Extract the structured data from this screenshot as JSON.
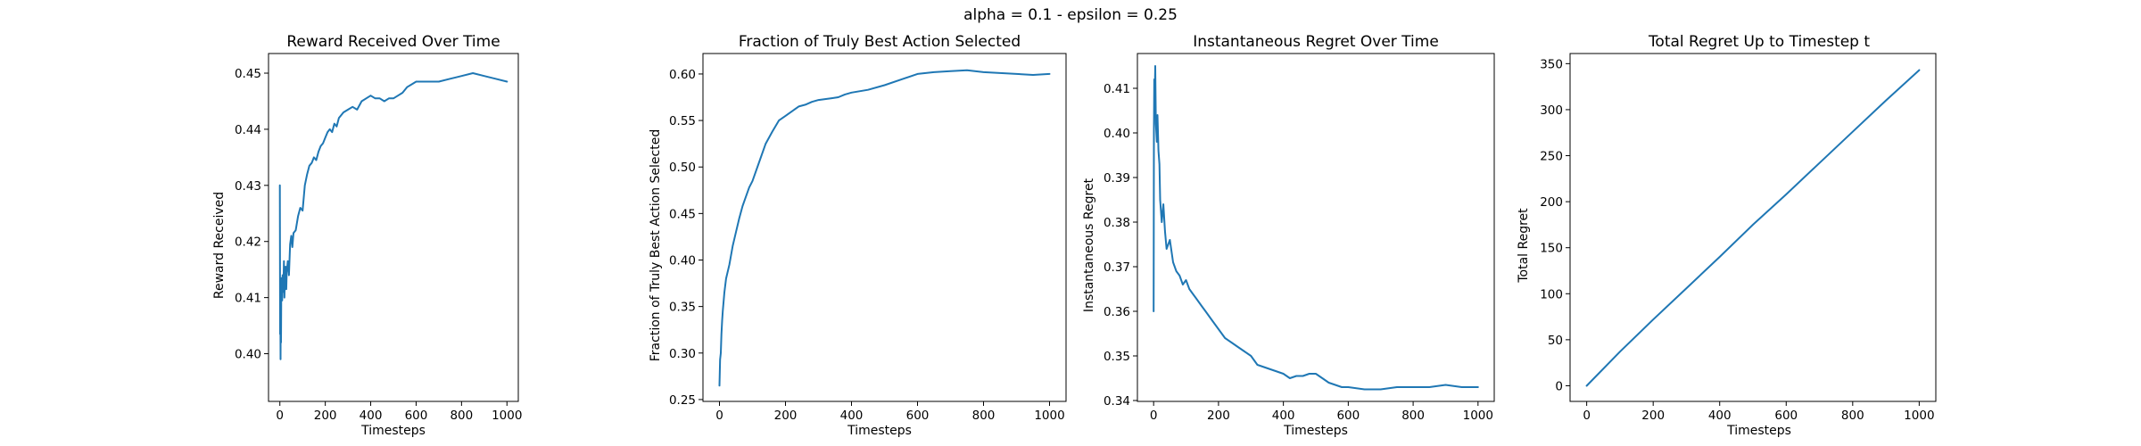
{
  "suptitle": "alpha = 0.1 - epsilon = 0.25",
  "colors": {
    "series": "#1f77b4",
    "axes": "#000000"
  },
  "chart_data": [
    {
      "type": "line",
      "title": "Reward Received Over Time",
      "xlabel": "Timesteps",
      "ylabel": "Reward Received",
      "xlim": [
        -50,
        1050
      ],
      "ylim": [
        0.3915,
        0.4535
      ],
      "xticks": [
        0,
        200,
        400,
        600,
        800,
        1000
      ],
      "xtick_labels": [
        "0",
        "200",
        "400",
        "600",
        "800",
        "1000"
      ],
      "yticks": [
        0.4,
        0.41,
        0.42,
        0.43,
        0.44,
        0.45
      ],
      "ytick_labels": [
        "0.40",
        "0.41",
        "0.42",
        "0.43",
        "0.44",
        "0.45"
      ],
      "grid": false,
      "series": [
        {
          "x": [
            0,
            1,
            2,
            3,
            4,
            5,
            6,
            8,
            10,
            12,
            15,
            18,
            20,
            22,
            25,
            28,
            30,
            35,
            40,
            45,
            50,
            55,
            60,
            70,
            80,
            90,
            100,
            110,
            120,
            130,
            140,
            150,
            160,
            170,
            180,
            190,
            200,
            210,
            220,
            230,
            240,
            250,
            260,
            280,
            300,
            320,
            340,
            360,
            380,
            400,
            420,
            440,
            460,
            480,
            500,
            520,
            540,
            560,
            580,
            600,
            650,
            700,
            750,
            800,
            850,
            900,
            950,
            1000
          ],
          "y": [
            0.43,
            0.4035,
            0.412,
            0.399,
            0.413,
            0.402,
            0.411,
            0.4135,
            0.4095,
            0.414,
            0.411,
            0.4165,
            0.41,
            0.413,
            0.4155,
            0.4115,
            0.4145,
            0.4165,
            0.414,
            0.4195,
            0.421,
            0.419,
            0.4215,
            0.422,
            0.4245,
            0.426,
            0.4255,
            0.43,
            0.432,
            0.4335,
            0.434,
            0.435,
            0.4345,
            0.436,
            0.437,
            0.4375,
            0.4385,
            0.4395,
            0.44,
            0.4395,
            0.441,
            0.4405,
            0.442,
            0.443,
            0.4435,
            0.444,
            0.4435,
            0.445,
            0.4455,
            0.446,
            0.4455,
            0.4455,
            0.445,
            0.4455,
            0.4455,
            0.446,
            0.4465,
            0.4475,
            0.448,
            0.4485,
            0.4485,
            0.4485,
            0.449,
            0.4495,
            0.45,
            0.4495,
            0.449,
            0.4485
          ]
        }
      ]
    },
    {
      "type": "line",
      "title": "Fraction of Truly Best Action Selected",
      "xlabel": "Timesteps",
      "ylabel": "Fraction of Truly Best Action Selected",
      "xlim": [
        -50,
        1050
      ],
      "ylim": [
        0.248,
        0.622
      ],
      "xticks": [
        0,
        200,
        400,
        600,
        800,
        1000
      ],
      "xtick_labels": [
        "0",
        "200",
        "400",
        "600",
        "800",
        "1000"
      ],
      "yticks": [
        0.25,
        0.3,
        0.35,
        0.4,
        0.45,
        0.5,
        0.55,
        0.6
      ],
      "ytick_labels": [
        "0.25",
        "0.30",
        "0.35",
        "0.40",
        "0.45",
        "0.50",
        "0.55",
        "0.60"
      ],
      "grid": false,
      "series": [
        {
          "x": [
            0,
            2,
            4,
            6,
            8,
            10,
            15,
            20,
            30,
            40,
            50,
            60,
            70,
            80,
            90,
            100,
            120,
            140,
            160,
            180,
            200,
            220,
            240,
            260,
            280,
            300,
            320,
            340,
            360,
            380,
            400,
            450,
            500,
            550,
            600,
            650,
            700,
            750,
            800,
            850,
            900,
            950,
            1000
          ],
          "y": [
            0.265,
            0.293,
            0.3,
            0.32,
            0.335,
            0.345,
            0.365,
            0.38,
            0.395,
            0.415,
            0.43,
            0.445,
            0.458,
            0.468,
            0.478,
            0.485,
            0.505,
            0.525,
            0.538,
            0.55,
            0.555,
            0.56,
            0.565,
            0.567,
            0.57,
            0.572,
            0.573,
            0.574,
            0.575,
            0.578,
            0.58,
            0.583,
            0.588,
            0.594,
            0.6,
            0.602,
            0.603,
            0.604,
            0.602,
            0.601,
            0.6,
            0.599,
            0.6
          ]
        }
      ]
    },
    {
      "type": "line",
      "title": "Instantaneous Regret Over Time",
      "xlabel": "Timesteps",
      "ylabel": "Instantaneous Regret",
      "xlim": [
        -50,
        1050
      ],
      "ylim": [
        0.3398,
        0.4178
      ],
      "xticks": [
        0,
        200,
        400,
        600,
        800,
        1000
      ],
      "xtick_labels": [
        "0",
        "200",
        "400",
        "600",
        "800",
        "1000"
      ],
      "yticks": [
        0.34,
        0.35,
        0.36,
        0.37,
        0.38,
        0.39,
        0.4,
        0.41
      ],
      "ytick_labels": [
        "0.34",
        "0.35",
        "0.36",
        "0.37",
        "0.38",
        "0.39",
        "0.40",
        "0.41"
      ],
      "grid": false,
      "series": [
        {
          "x": [
            0,
            1,
            2,
            3,
            5,
            7,
            10,
            12,
            15,
            18,
            20,
            25,
            30,
            35,
            40,
            50,
            60,
            70,
            80,
            90,
            100,
            110,
            120,
            130,
            140,
            150,
            160,
            180,
            200,
            220,
            240,
            260,
            280,
            300,
            320,
            340,
            360,
            380,
            400,
            420,
            440,
            460,
            480,
            500,
            520,
            540,
            560,
            580,
            600,
            650,
            700,
            750,
            800,
            850,
            900,
            950,
            1000
          ],
          "y": [
            0.36,
            0.4,
            0.412,
            0.407,
            0.415,
            0.402,
            0.398,
            0.404,
            0.396,
            0.393,
            0.385,
            0.38,
            0.384,
            0.378,
            0.374,
            0.376,
            0.371,
            0.369,
            0.368,
            0.366,
            0.367,
            0.365,
            0.364,
            0.363,
            0.362,
            0.361,
            0.36,
            0.358,
            0.356,
            0.354,
            0.353,
            0.352,
            0.351,
            0.35,
            0.348,
            0.3475,
            0.347,
            0.3465,
            0.346,
            0.345,
            0.3455,
            0.3455,
            0.346,
            0.346,
            0.345,
            0.344,
            0.3435,
            0.343,
            0.343,
            0.3425,
            0.3425,
            0.343,
            0.343,
            0.343,
            0.3435,
            0.343,
            0.343
          ]
        }
      ]
    },
    {
      "type": "line",
      "title": "Total Regret Up to Timestep t",
      "xlabel": "Timesteps",
      "ylabel": "Total Regret",
      "xlim": [
        -50,
        1050
      ],
      "ylim": [
        -17,
        361
      ],
      "xticks": [
        0,
        200,
        400,
        600,
        800,
        1000
      ],
      "xtick_labels": [
        "0",
        "200",
        "400",
        "600",
        "800",
        "1000"
      ],
      "yticks": [
        0,
        50,
        100,
        150,
        200,
        250,
        300,
        350
      ],
      "ytick_labels": [
        "0",
        "50",
        "100",
        "150",
        "200",
        "250",
        "300",
        "350"
      ],
      "grid": false,
      "series": [
        {
          "x": [
            0,
            100,
            200,
            300,
            400,
            500,
            600,
            700,
            800,
            900,
            1000
          ],
          "y": [
            0,
            37,
            72,
            106,
            140,
            175,
            208,
            242,
            276,
            310,
            343
          ]
        }
      ]
    }
  ]
}
